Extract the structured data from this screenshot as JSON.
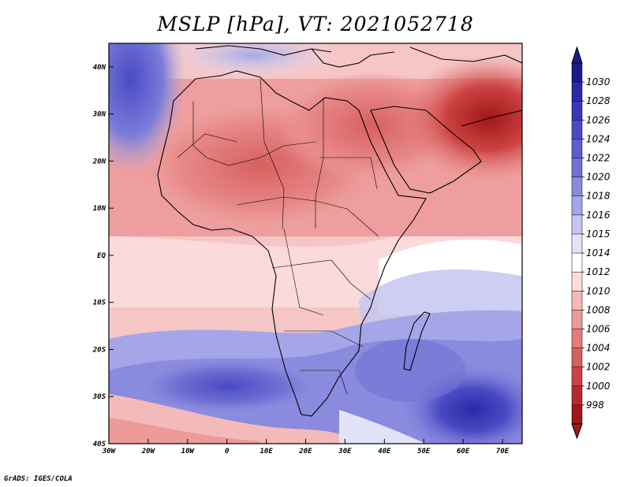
{
  "title": "MSLP [hPa], VT: 2021052718",
  "credit": "GrADS: IGES/COLA",
  "map": {
    "variable": "Mean sea level pressure",
    "units": "hPa",
    "valid_time": "2021052718",
    "lon_range": [
      -30,
      75
    ],
    "lat_range": [
      -40,
      45
    ],
    "x_ticks": [
      "30W",
      "20W",
      "10W",
      "0",
      "10E",
      "20E",
      "30E",
      "40E",
      "50E",
      "60E",
      "70E"
    ],
    "y_ticks": [
      "40N",
      "30N",
      "20N",
      "10N",
      "EQ",
      "10S",
      "20S",
      "30S",
      "40S"
    ]
  },
  "colorbar": {
    "labels": [
      "1030",
      "1028",
      "1026",
      "1024",
      "1022",
      "1020",
      "1018",
      "1016",
      "1015",
      "1014",
      "1012",
      "1010",
      "1008",
      "1006",
      "1004",
      "1002",
      "1000",
      "998"
    ],
    "colors": [
      "#1c1c8e",
      "#2a2aa8",
      "#3838b8",
      "#4a4ac4",
      "#5c5ecc",
      "#7272d4",
      "#8a8ade",
      "#a4a6e8",
      "#c4c6f0",
      "#e2e3f8",
      "#ffffff",
      "#fcdcdc",
      "#f4baba",
      "#ec9a9a",
      "#e27c7c",
      "#d86060",
      "#cc4242",
      "#b82a2a",
      "#a01818"
    ],
    "top_arrow_color": "#1c1c8e",
    "bottom_arrow_color": "#a01818"
  }
}
